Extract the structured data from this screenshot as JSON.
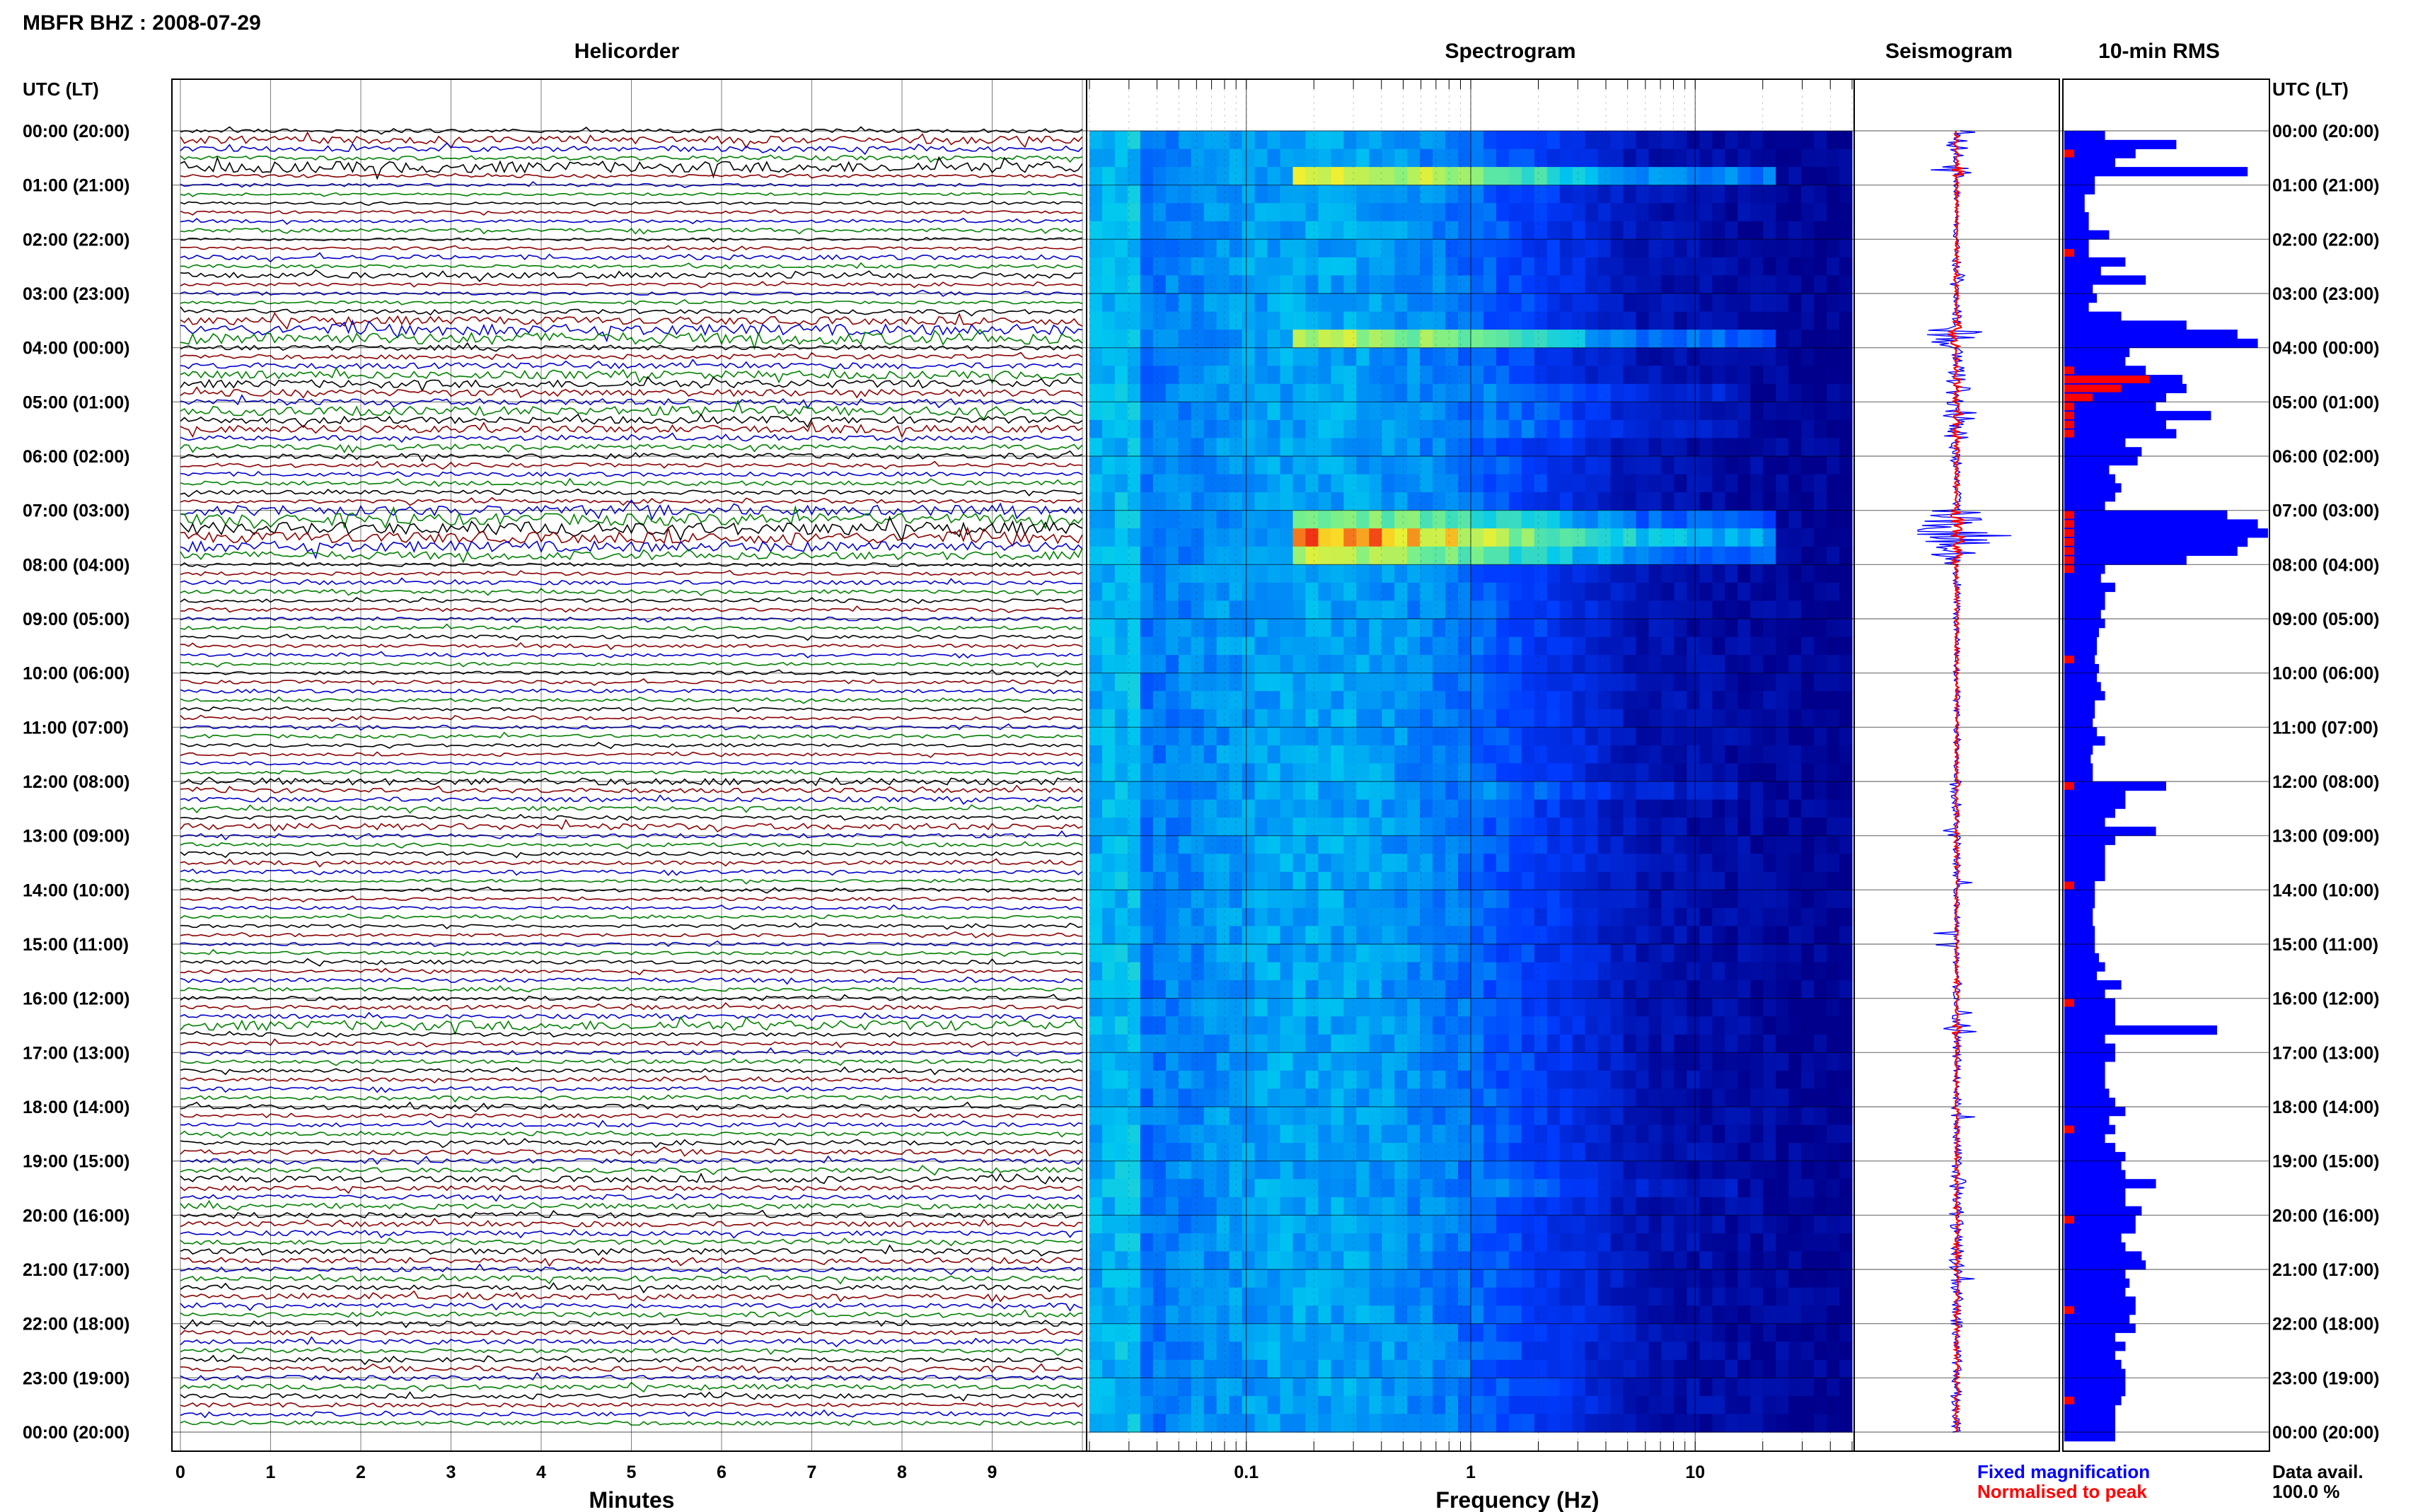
{
  "header": {
    "station": "MBFR BHZ : 2008-07-29"
  },
  "panels": {
    "helicorder": "Helicorder",
    "spectrogram": "Spectrogram",
    "seismogram": "Seismogram",
    "rms": "10-min RMS"
  },
  "axes": {
    "time_label": "UTC (LT)",
    "helicorder_xlabel": "Minutes",
    "spectrogram_xlabel": "Frequency (Hz)"
  },
  "legend": {
    "fixed": "Fixed magnification",
    "normalised": "Normalised to peak",
    "fixed_color": "#0000ff",
    "normalised_color": "#ff0000"
  },
  "data_availability": {
    "label": "Data avail.",
    "value": "100.0 %"
  },
  "colors": {
    "trace_cycle": [
      "#000000",
      "#8b0000",
      "#0000cc",
      "#008000"
    ],
    "rms_bar": "#0000ff",
    "rms_norm": "#ff0000"
  },
  "chart_data": {
    "type": "helicorder",
    "time_ticks": [
      "00:00 (20:00)",
      "01:00 (21:00)",
      "02:00 (22:00)",
      "03:00 (23:00)",
      "04:00 (00:00)",
      "05:00 (01:00)",
      "06:00 (02:00)",
      "07:00 (03:00)",
      "08:00 (04:00)",
      "09:00 (05:00)",
      "10:00 (06:00)",
      "11:00 (07:00)",
      "12:00 (08:00)",
      "13:00 (09:00)",
      "14:00 (10:00)",
      "15:00 (11:00)",
      "16:00 (12:00)",
      "17:00 (13:00)",
      "18:00 (14:00)",
      "19:00 (15:00)",
      "20:00 (16:00)",
      "21:00 (17:00)",
      "22:00 (18:00)",
      "23:00 (19:00)",
      "00:00 (20:00)"
    ],
    "minute_ticks": [
      "0",
      "1",
      "2",
      "3",
      "4",
      "5",
      "6",
      "7",
      "8",
      "9"
    ],
    "freq_ticks": [
      "0.1",
      "1",
      "10"
    ],
    "freq_range": [
      0.02,
      50
    ],
    "rms_fixed": [
      0.2,
      0.55,
      0.35,
      0.25,
      0.9,
      0.15,
      0.15,
      0.1,
      0.1,
      0.12,
      0.12,
      0.22,
      0.12,
      0.12,
      0.3,
      0.18,
      0.4,
      0.14,
      0.16,
      0.12,
      0.28,
      0.6,
      0.85,
      0.95,
      0.32,
      0.3,
      0.4,
      0.58,
      0.6,
      0.5,
      0.45,
      0.72,
      0.5,
      0.55,
      0.3,
      0.38,
      0.36,
      0.22,
      0.25,
      0.28,
      0.25,
      0.2,
      0.8,
      0.95,
      1.0,
      0.9,
      0.85,
      0.6,
      0.2,
      0.18,
      0.25,
      0.2,
      0.2,
      0.18,
      0.2,
      0.17,
      0.16,
      0.16,
      0.15,
      0.17,
      0.16,
      0.18,
      0.2,
      0.15,
      0.15,
      0.14,
      0.16,
      0.2,
      0.14,
      0.13,
      0.14,
      0.14,
      0.5,
      0.3,
      0.3,
      0.25,
      0.2,
      0.45,
      0.25,
      0.2,
      0.2,
      0.2,
      0.2,
      0.15,
      0.15,
      0.15,
      0.14,
      0.14,
      0.15,
      0.15,
      0.15,
      0.17,
      0.2,
      0.16,
      0.28,
      0.2,
      0.25,
      0.25,
      0.25,
      0.75,
      0.2,
      0.25,
      0.25,
      0.2,
      0.2,
      0.2,
      0.22,
      0.25,
      0.3,
      0.22,
      0.25,
      0.2,
      0.25,
      0.3,
      0.28,
      0.3,
      0.45,
      0.3,
      0.3,
      0.38,
      0.35,
      0.35,
      0.28,
      0.3,
      0.38,
      0.4,
      0.3,
      0.32,
      0.3,
      0.35,
      0.35,
      0.32,
      0.35,
      0.25,
      0.3,
      0.25,
      0.28,
      0.3,
      0.3,
      0.3,
      0.28,
      0.25,
      0.25,
      0.25,
      0.25
    ],
    "rms_normalised_rows": [
      2,
      13,
      26,
      27,
      29,
      30,
      31,
      32,
      33,
      42,
      43,
      44,
      45,
      46,
      47,
      48,
      58,
      72,
      83,
      96,
      110,
      120,
      130,
      140
    ]
  }
}
